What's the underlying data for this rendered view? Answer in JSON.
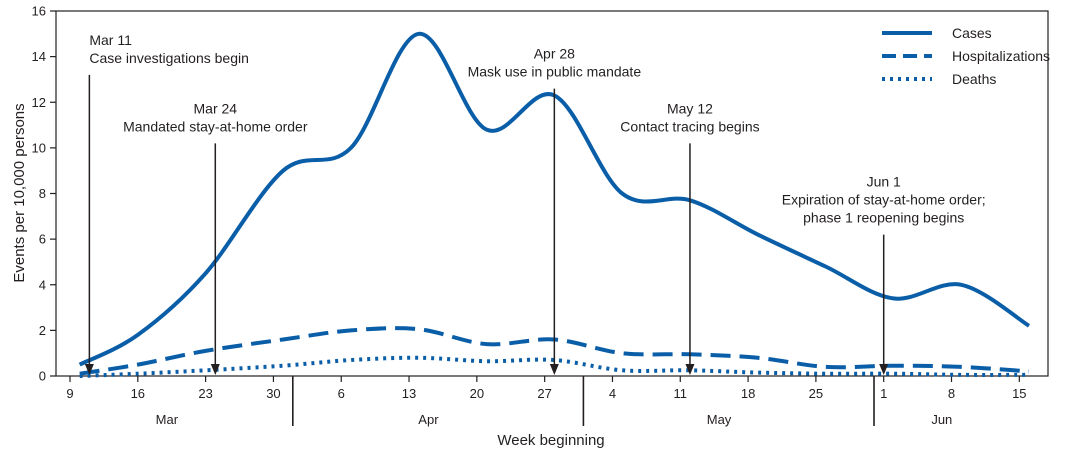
{
  "chart_data": {
    "type": "line",
    "xlabel": "Week beginning",
    "ylabel": "Events per 10,000 persons",
    "ylim": [
      0,
      16
    ],
    "yticks": [
      0,
      2,
      4,
      6,
      8,
      10,
      12,
      14,
      16
    ],
    "xlim": [
      "2020-03-09",
      "2020-06-16"
    ],
    "x_ticks": [
      {
        "date": "2020-03-09",
        "label": "9"
      },
      {
        "date": "2020-03-16",
        "label": "16"
      },
      {
        "date": "2020-03-23",
        "label": "23"
      },
      {
        "date": "2020-03-30",
        "label": "30"
      },
      {
        "date": "2020-04-06",
        "label": "6"
      },
      {
        "date": "2020-04-13",
        "label": "13"
      },
      {
        "date": "2020-04-20",
        "label": "20"
      },
      {
        "date": "2020-04-27",
        "label": "27"
      },
      {
        "date": "2020-05-04",
        "label": "4"
      },
      {
        "date": "2020-05-11",
        "label": "11"
      },
      {
        "date": "2020-05-18",
        "label": "18"
      },
      {
        "date": "2020-05-25",
        "label": "25"
      },
      {
        "date": "2020-06-01",
        "label": "1"
      },
      {
        "date": "2020-06-08",
        "label": "8"
      },
      {
        "date": "2020-06-15",
        "label": "15"
      }
    ],
    "months": [
      {
        "label": "Mar",
        "center": "2020-03-19"
      },
      {
        "label": "Apr",
        "center": "2020-04-15"
      },
      {
        "label": "May",
        "center": "2020-05-15"
      },
      {
        "label": "Jun",
        "center": "2020-06-07"
      }
    ],
    "month_boundaries": [
      "2020-04-01",
      "2020-05-01",
      "2020-05-31"
    ],
    "series": [
      {
        "name": "Cases",
        "style": "solid",
        "points": [
          {
            "x": "2020-03-10",
            "y": 0.5
          },
          {
            "x": "2020-03-16",
            "y": 1.8
          },
          {
            "x": "2020-03-23",
            "y": 4.5
          },
          {
            "x": "2020-03-31",
            "y": 9.0
          },
          {
            "x": "2020-04-07",
            "y": 10.0
          },
          {
            "x": "2020-04-14",
            "y": 15.0
          },
          {
            "x": "2020-04-21",
            "y": 10.8
          },
          {
            "x": "2020-04-28",
            "y": 12.3
          },
          {
            "x": "2020-05-05",
            "y": 8.0
          },
          {
            "x": "2020-05-12",
            "y": 7.7
          },
          {
            "x": "2020-05-19",
            "y": 6.2
          },
          {
            "x": "2020-05-26",
            "y": 4.8
          },
          {
            "x": "2020-06-02",
            "y": 3.4
          },
          {
            "x": "2020-06-09",
            "y": 4.0
          },
          {
            "x": "2020-06-16",
            "y": 2.2
          }
        ]
      },
      {
        "name": "Hospitalizations",
        "style": "dashed",
        "points": [
          {
            "x": "2020-03-10",
            "y": 0.1
          },
          {
            "x": "2020-03-16",
            "y": 0.5
          },
          {
            "x": "2020-03-23",
            "y": 1.1
          },
          {
            "x": "2020-03-31",
            "y": 1.6
          },
          {
            "x": "2020-04-07",
            "y": 2.0
          },
          {
            "x": "2020-04-14",
            "y": 2.05
          },
          {
            "x": "2020-04-21",
            "y": 1.4
          },
          {
            "x": "2020-04-28",
            "y": 1.6
          },
          {
            "x": "2020-05-05",
            "y": 1.0
          },
          {
            "x": "2020-05-12",
            "y": 0.95
          },
          {
            "x": "2020-05-19",
            "y": 0.8
          },
          {
            "x": "2020-05-26",
            "y": 0.4
          },
          {
            "x": "2020-06-02",
            "y": 0.45
          },
          {
            "x": "2020-06-09",
            "y": 0.4
          },
          {
            "x": "2020-06-16",
            "y": 0.2
          }
        ]
      },
      {
        "name": "Deaths",
        "style": "dotted",
        "points": [
          {
            "x": "2020-03-10",
            "y": 0.0
          },
          {
            "x": "2020-03-16",
            "y": 0.1
          },
          {
            "x": "2020-03-23",
            "y": 0.25
          },
          {
            "x": "2020-03-31",
            "y": 0.45
          },
          {
            "x": "2020-04-07",
            "y": 0.7
          },
          {
            "x": "2020-04-14",
            "y": 0.8
          },
          {
            "x": "2020-04-21",
            "y": 0.65
          },
          {
            "x": "2020-04-28",
            "y": 0.7
          },
          {
            "x": "2020-05-05",
            "y": 0.25
          },
          {
            "x": "2020-05-12",
            "y": 0.25
          },
          {
            "x": "2020-05-19",
            "y": 0.15
          },
          {
            "x": "2020-05-26",
            "y": 0.1
          },
          {
            "x": "2020-06-02",
            "y": 0.1
          },
          {
            "x": "2020-06-09",
            "y": 0.05
          },
          {
            "x": "2020-06-16",
            "y": 0.05
          }
        ]
      }
    ],
    "annotations": [
      {
        "date": "2020-03-11",
        "lines": [
          "Mar 11",
          "Case investigations begin"
        ],
        "align": "start",
        "arrow_y_top": 13.2
      },
      {
        "date": "2020-03-24",
        "lines": [
          "Mar 24",
          "Mandated stay-at-home order"
        ],
        "align": "middle",
        "arrow_y_top": 10.2
      },
      {
        "date": "2020-04-28",
        "lines": [
          "Apr 28",
          "Mask use in public mandate"
        ],
        "align": "middle",
        "arrow_y_top": 12.6
      },
      {
        "date": "2020-05-12",
        "lines": [
          "May 12",
          "Contact tracing begins"
        ],
        "align": "middle",
        "arrow_y_top": 10.2
      },
      {
        "date": "2020-06-01",
        "lines": [
          "Jun 1",
          "Expiration of stay-at-home order;",
          "phase 1 reopening begins"
        ],
        "align": "middle",
        "arrow_y_top": 6.2
      }
    ],
    "legend": {
      "position": "top-right"
    },
    "colors": {
      "series": "#0a5ea8",
      "axis": "#231f20"
    },
    "grid": false
  }
}
